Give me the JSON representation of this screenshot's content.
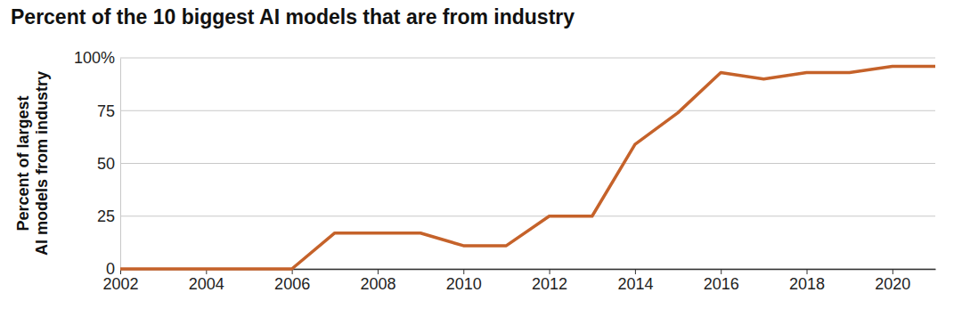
{
  "chart_data": {
    "type": "line",
    "title": "Percent of the 10 biggest AI models that are from industry",
    "y_label": [
      "Percent of largest",
      "AI models from industry"
    ],
    "x": [
      2002,
      2003,
      2004,
      2005,
      2006,
      2007,
      2008,
      2009,
      2010,
      2011,
      2012,
      2013,
      2014,
      2015,
      2016,
      2017,
      2018,
      2019,
      2020,
      2021
    ],
    "values": [
      0,
      0,
      0,
      0,
      0,
      17,
      17,
      17,
      11,
      11,
      25,
      25,
      59,
      74,
      93,
      90,
      93,
      93,
      96,
      96
    ],
    "color": "#c5622a",
    "xlim": [
      2002,
      2021
    ],
    "xticks": [
      2002,
      2004,
      2006,
      2008,
      2010,
      2012,
      2014,
      2016,
      2018,
      2020
    ],
    "ylim": [
      0,
      100
    ],
    "yticks": [
      0,
      25,
      50,
      75,
      {
        "value": 100,
        "label": "100%"
      }
    ],
    "grid": true
  }
}
